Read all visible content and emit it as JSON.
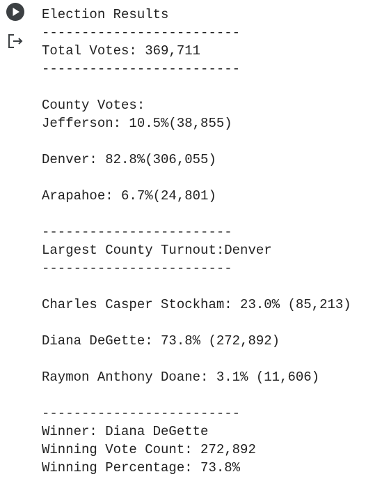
{
  "output": {
    "blocks": [
      [
        "Election Results",
        "-------------------------",
        "Total Votes: 369,711",
        "-------------------------"
      ],
      [
        "County Votes:",
        "Jefferson: 10.5%(38,855)"
      ],
      [
        "Denver: 82.8%(306,055)"
      ],
      [
        "Arapahoe: 6.7%(24,801)"
      ],
      [
        "------------------------",
        "Largest County Turnout:Denver",
        "------------------------"
      ],
      [
        "Charles Casper Stockham: 23.0% (85,213)"
      ],
      [
        "Diana DeGette: 73.8% (272,892)"
      ],
      [
        "Raymon Anthony Doane: 3.1% (11,606)"
      ],
      [
        "-------------------------",
        "Winner: Diana DeGette",
        "Winning Vote Count: 272,892",
        "Winning Percentage: 73.8%"
      ]
    ]
  }
}
